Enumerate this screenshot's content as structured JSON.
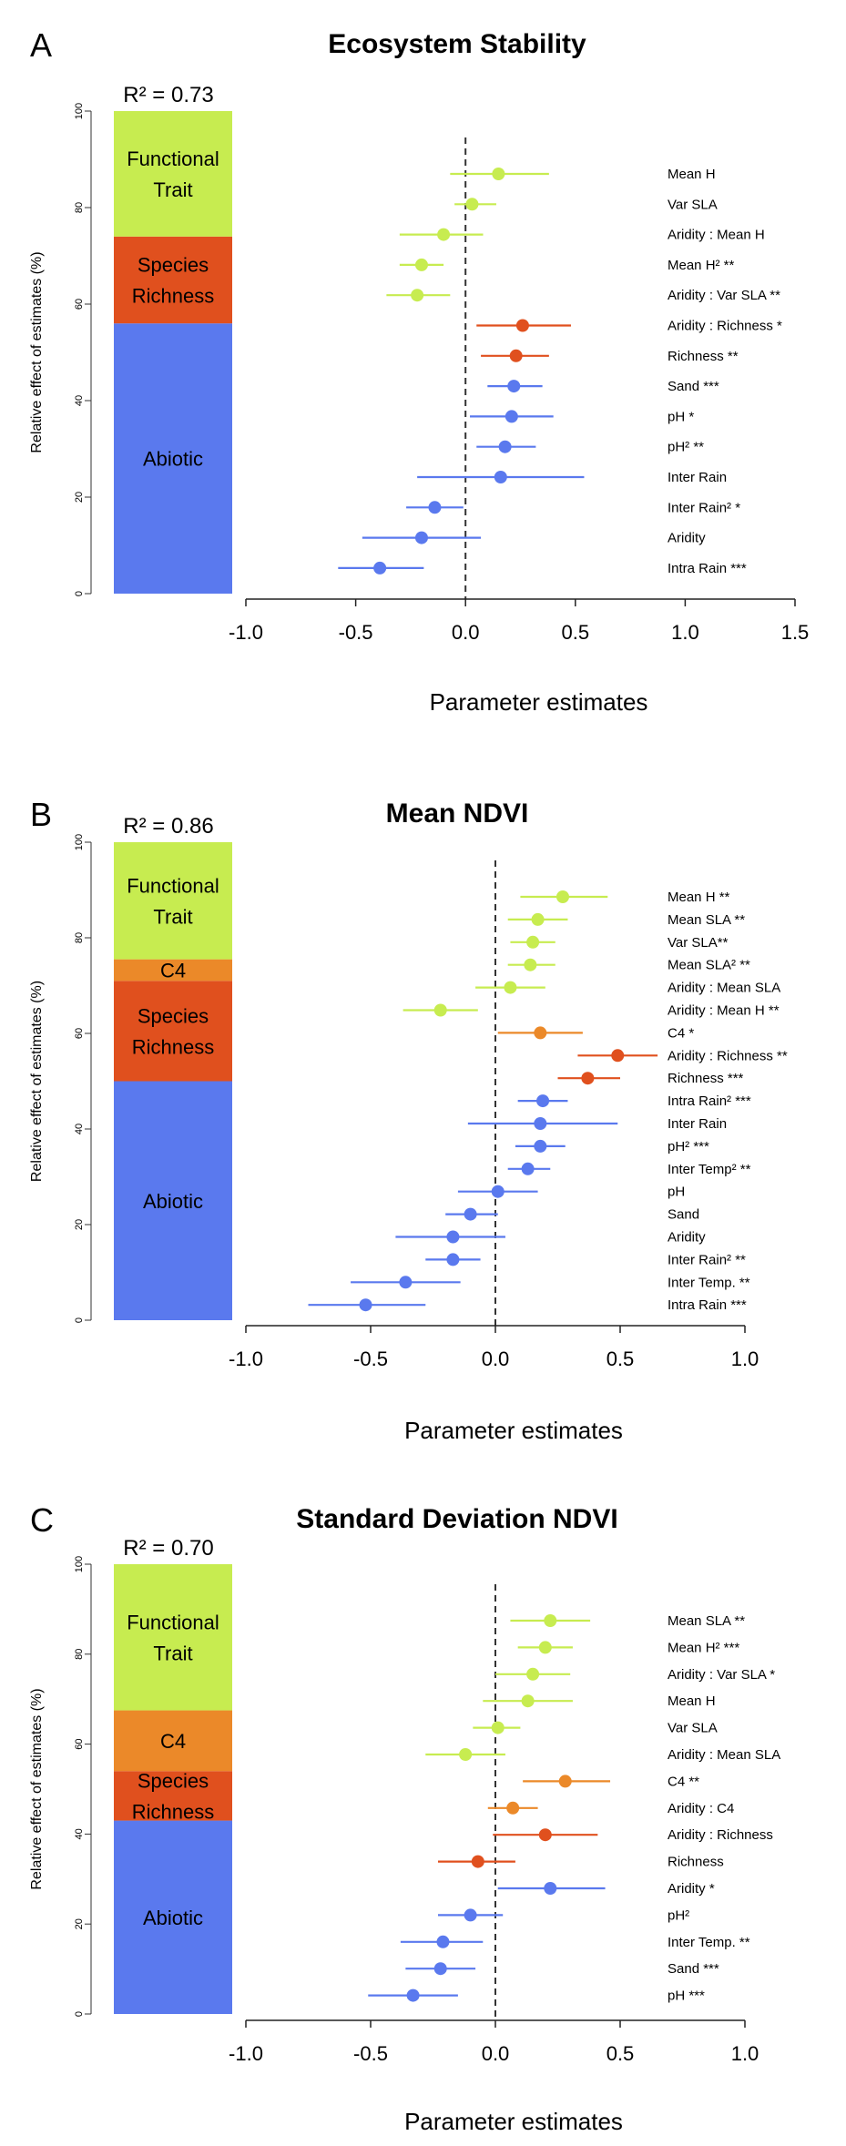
{
  "chart_data": [
    {
      "type": "forest",
      "panel_letter": "A",
      "title": "Ecosystem Stability",
      "r2": "R² = 0.73",
      "xlabel": "Parameter estimates",
      "ylabel": "Relative effect of estimates (%)",
      "xlim": [
        -1.0,
        1.5
      ],
      "xticks": [
        "-1.0",
        "-0.5",
        "0.0",
        "0.5",
        "1.0",
        "1.5"
      ],
      "yticks": [
        "0",
        "20",
        "40",
        "60",
        "80",
        "100"
      ],
      "stack": [
        {
          "label": "Abiotic",
          "start": 0,
          "end": 56,
          "color": "#5a79ee"
        },
        {
          "label": "Species Richness",
          "start": 56,
          "end": 74,
          "color": "#e0501e"
        },
        {
          "label": "Functional Trait",
          "start": 74,
          "end": 100,
          "color": "#c7ec50"
        }
      ],
      "rows": [
        {
          "label": "Mean H",
          "est": 0.15,
          "lo": -0.07,
          "hi": 0.38,
          "color": "#c7ec50"
        },
        {
          "label": "Var SLA",
          "est": 0.03,
          "lo": -0.05,
          "hi": 0.14,
          "color": "#c7ec50"
        },
        {
          "label": "Aridity : Mean H",
          "est": -0.1,
          "lo": -0.3,
          "hi": 0.08,
          "color": "#c7ec50"
        },
        {
          "label": "Mean H² **",
          "est": -0.2,
          "lo": -0.3,
          "hi": -0.1,
          "color": "#c7ec50"
        },
        {
          "label": "Aridity : Var SLA  **",
          "est": -0.22,
          "lo": -0.36,
          "hi": -0.07,
          "color": "#c7ec50"
        },
        {
          "label": "Aridity : Richness *",
          "est": 0.26,
          "lo": 0.05,
          "hi": 0.48,
          "color": "#e0501e"
        },
        {
          "label": "Richness **",
          "est": 0.23,
          "lo": 0.07,
          "hi": 0.38,
          "color": "#e0501e"
        },
        {
          "label": "Sand ***",
          "est": 0.22,
          "lo": 0.1,
          "hi": 0.35,
          "color": "#5a79ee"
        },
        {
          "label": "pH *",
          "est": 0.21,
          "lo": 0.02,
          "hi": 0.4,
          "color": "#5a79ee"
        },
        {
          "label": "pH² **",
          "est": 0.18,
          "lo": 0.05,
          "hi": 0.32,
          "color": "#5a79ee"
        },
        {
          "label": "Inter Rain",
          "est": 0.16,
          "lo": -0.22,
          "hi": 0.54,
          "color": "#5a79ee"
        },
        {
          "label": "Inter Rain² *",
          "est": -0.14,
          "lo": -0.27,
          "hi": -0.01,
          "color": "#5a79ee"
        },
        {
          "label": "Aridity",
          "est": -0.2,
          "lo": -0.47,
          "hi": 0.07,
          "color": "#5a79ee"
        },
        {
          "label": "Intra Rain ***",
          "est": -0.39,
          "lo": -0.58,
          "hi": -0.19,
          "color": "#5a79ee"
        }
      ]
    },
    {
      "type": "forest",
      "panel_letter": "B",
      "title": "Mean NDVI",
      "r2": "R² = 0.86",
      "xlabel": "Parameter estimates",
      "ylabel": "Relative effect of estimates (%)",
      "xlim": [
        -1.0,
        1.0
      ],
      "xticks": [
        "-1.0",
        "-0.5",
        "0.0",
        "0.5",
        "1.0"
      ],
      "yticks": [
        "0",
        "20",
        "40",
        "60",
        "80",
        "100"
      ],
      "stack": [
        {
          "label": "Abiotic",
          "start": 0,
          "end": 50,
          "color": "#5a79ee"
        },
        {
          "label": "Species Richness",
          "start": 50,
          "end": 71,
          "color": "#e0501e"
        },
        {
          "label": "C4",
          "start": 71,
          "end": 75.5,
          "color": "#eb8929"
        },
        {
          "label": "Functional Trait",
          "start": 75.5,
          "end": 100,
          "color": "#c7ec50"
        }
      ],
      "rows": [
        {
          "label": "Mean H **",
          "est": 0.27,
          "lo": 0.1,
          "hi": 0.45,
          "color": "#c7ec50"
        },
        {
          "label": "Mean SLA **",
          "est": 0.17,
          "lo": 0.05,
          "hi": 0.29,
          "color": "#c7ec50"
        },
        {
          "label": "Var SLA**",
          "est": 0.15,
          "lo": 0.06,
          "hi": 0.24,
          "color": "#c7ec50"
        },
        {
          "label": "Mean SLA² **",
          "est": 0.14,
          "lo": 0.05,
          "hi": 0.24,
          "color": "#c7ec50"
        },
        {
          "label": "Aridity : Mean SLA",
          "est": 0.06,
          "lo": -0.08,
          "hi": 0.2,
          "color": "#c7ec50"
        },
        {
          "label": "Aridity  : Mean H **",
          "est": -0.22,
          "lo": -0.37,
          "hi": -0.07,
          "color": "#c7ec50"
        },
        {
          "label": "C4 *",
          "est": 0.18,
          "lo": 0.01,
          "hi": 0.35,
          "color": "#eb8929"
        },
        {
          "label": "Aridity : Richness **",
          "est": 0.49,
          "lo": 0.33,
          "hi": 0.65,
          "color": "#e0501e"
        },
        {
          "label": "Richness ***",
          "est": 0.37,
          "lo": 0.25,
          "hi": 0.5,
          "color": "#e0501e"
        },
        {
          "label": "Intra Rain² ***",
          "est": 0.19,
          "lo": 0.09,
          "hi": 0.29,
          "color": "#5a79ee"
        },
        {
          "label": "Inter Rain",
          "est": 0.18,
          "lo": -0.11,
          "hi": 0.49,
          "color": "#5a79ee"
        },
        {
          "label": "pH² ***",
          "est": 0.18,
          "lo": 0.08,
          "hi": 0.28,
          "color": "#5a79ee"
        },
        {
          "label": "Inter Temp² **",
          "est": 0.13,
          "lo": 0.05,
          "hi": 0.22,
          "color": "#5a79ee"
        },
        {
          "label": "pH",
          "est": 0.01,
          "lo": -0.15,
          "hi": 0.17,
          "color": "#5a79ee"
        },
        {
          "label": "Sand",
          "est": -0.1,
          "lo": -0.2,
          "hi": 0.01,
          "color": "#5a79ee"
        },
        {
          "label": "Aridity",
          "est": -0.17,
          "lo": -0.4,
          "hi": 0.04,
          "color": "#5a79ee"
        },
        {
          "label": "Inter Rain² **",
          "est": -0.17,
          "lo": -0.28,
          "hi": -0.06,
          "color": "#5a79ee"
        },
        {
          "label": "Inter Temp. **",
          "est": -0.36,
          "lo": -0.58,
          "hi": -0.14,
          "color": "#5a79ee"
        },
        {
          "label": "Intra Rain ***",
          "est": -0.52,
          "lo": -0.75,
          "hi": -0.28,
          "color": "#5a79ee"
        }
      ]
    },
    {
      "type": "forest",
      "panel_letter": "C",
      "title": "Standard Deviation NDVI",
      "r2": "R² = 0.70",
      "xlabel": "Parameter estimates",
      "ylabel": "Relative effect of estimates (%)",
      "xlim": [
        -1.0,
        1.0
      ],
      "xticks": [
        "-1.0",
        "-0.5",
        "0.0",
        "0.5",
        "1.0"
      ],
      "yticks": [
        "0",
        "20",
        "40",
        "60",
        "80",
        "100"
      ],
      "stack": [
        {
          "label": "Abiotic",
          "start": 0,
          "end": 43,
          "color": "#5a79ee"
        },
        {
          "label": "Species Richness",
          "start": 43,
          "end": 54,
          "color": "#e0501e"
        },
        {
          "label": "C4",
          "start": 54,
          "end": 67.5,
          "color": "#eb8929"
        },
        {
          "label": "Functional Trait",
          "start": 67.5,
          "end": 100,
          "color": "#c7ec50"
        }
      ],
      "rows": [
        {
          "label": "Mean SLA **",
          "est": 0.22,
          "lo": 0.06,
          "hi": 0.38,
          "color": "#c7ec50"
        },
        {
          "label": "Mean H² ***",
          "est": 0.2,
          "lo": 0.09,
          "hi": 0.31,
          "color": "#c7ec50"
        },
        {
          "label": "Aridity : Var SLA *",
          "est": 0.15,
          "lo": 0.0,
          "hi": 0.3,
          "color": "#c7ec50"
        },
        {
          "label": "Mean H",
          "est": 0.13,
          "lo": -0.05,
          "hi": 0.31,
          "color": "#c7ec50"
        },
        {
          "label": "Var SLA",
          "est": 0.01,
          "lo": -0.09,
          "hi": 0.1,
          "color": "#c7ec50"
        },
        {
          "label": "Aridity : Mean SLA",
          "est": -0.12,
          "lo": -0.28,
          "hi": 0.04,
          "color": "#c7ec50"
        },
        {
          "label": "C4 **",
          "est": 0.28,
          "lo": 0.11,
          "hi": 0.46,
          "color": "#eb8929"
        },
        {
          "label": "Aridity : C4",
          "est": 0.07,
          "lo": -0.03,
          "hi": 0.17,
          "color": "#eb8929"
        },
        {
          "label": "Aridity : Richness",
          "est": 0.2,
          "lo": -0.01,
          "hi": 0.41,
          "color": "#e0501e"
        },
        {
          "label": "Richness",
          "est": -0.07,
          "lo": -0.23,
          "hi": 0.08,
          "color": "#e0501e"
        },
        {
          "label": "Aridity *",
          "est": 0.22,
          "lo": 0.01,
          "hi": 0.44,
          "color": "#5a79ee"
        },
        {
          "label": "pH²",
          "est": -0.1,
          "lo": -0.23,
          "hi": 0.03,
          "color": "#5a79ee"
        },
        {
          "label": "Inter Temp. **",
          "est": -0.21,
          "lo": -0.38,
          "hi": -0.05,
          "color": "#5a79ee"
        },
        {
          "label": "Sand ***",
          "est": -0.22,
          "lo": -0.36,
          "hi": -0.08,
          "color": "#5a79ee"
        },
        {
          "label": "pH ***",
          "est": -0.33,
          "lo": -0.51,
          "hi": -0.15,
          "color": "#5a79ee"
        }
      ]
    }
  ]
}
